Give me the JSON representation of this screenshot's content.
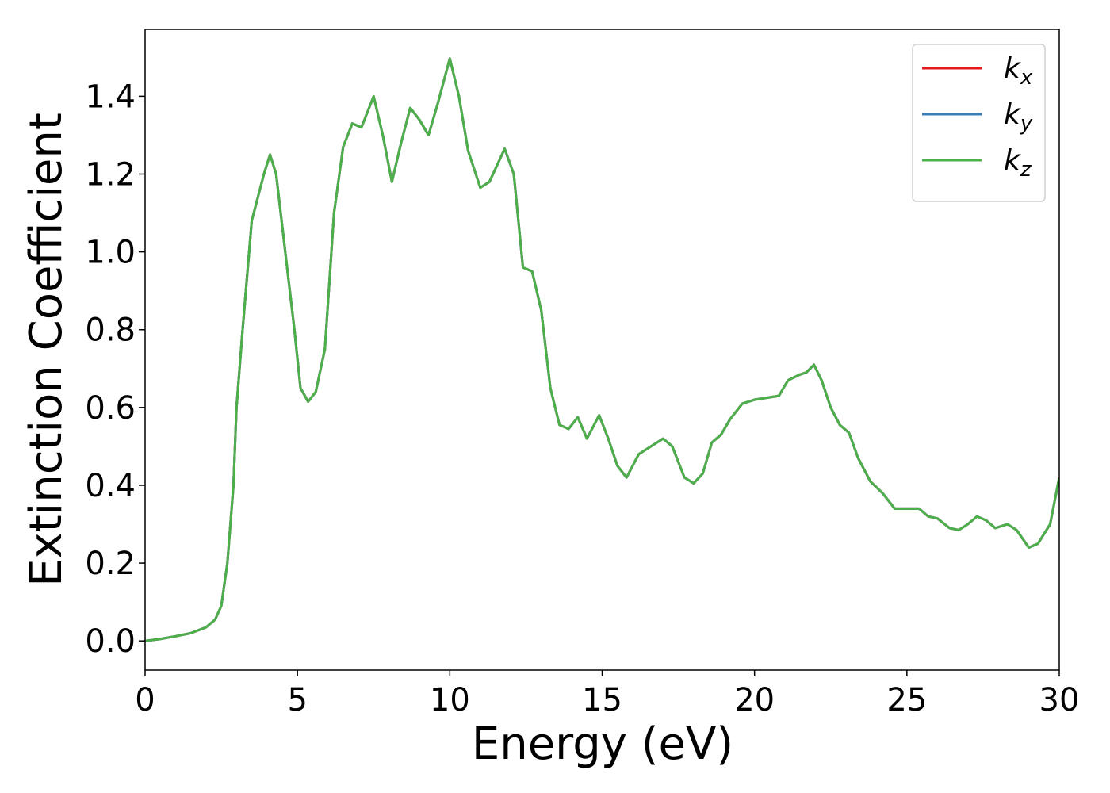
{
  "chart_data": {
    "type": "line",
    "xlabel": "Energy (eV)",
    "ylabel": "Extinction Coefficient",
    "x": [
      0,
      0.5,
      1,
      1.5,
      2,
      2.3,
      2.5,
      2.7,
      2.9,
      3.0,
      3.2,
      3.5,
      3.7,
      3.9,
      4.1,
      4.3,
      4.6,
      4.9,
      5.1,
      5.35,
      5.6,
      5.9,
      6.2,
      6.5,
      6.8,
      7.1,
      7.5,
      7.8,
      8.1,
      8.4,
      8.7,
      9.0,
      9.3,
      9.6,
      10.0,
      10.3,
      10.6,
      11.0,
      11.3,
      11.8,
      12.1,
      12.4,
      12.7,
      13.0,
      13.3,
      13.6,
      13.9,
      14.2,
      14.5,
      14.9,
      15.2,
      15.5,
      15.8,
      16.2,
      16.6,
      17.0,
      17.3,
      17.7,
      18.0,
      18.3,
      18.6,
      18.9,
      19.2,
      19.6,
      20.0,
      20.4,
      20.8,
      21.1,
      21.5,
      21.7,
      21.95,
      22.2,
      22.5,
      22.8,
      23.1,
      23.4,
      23.8,
      24.2,
      24.6,
      25.0,
      25.4,
      25.7,
      26.0,
      26.4,
      26.7,
      27.0,
      27.3,
      27.6,
      27.9,
      28.3,
      28.6,
      29.0,
      29.3,
      29.7,
      30.0
    ],
    "series": [
      {
        "name": "kx",
        "color": "#e41a1c",
        "values": [
          0.0,
          0.005,
          0.012,
          0.02,
          0.035,
          0.055,
          0.09,
          0.2,
          0.4,
          0.6,
          0.8,
          1.08,
          1.14,
          1.2,
          1.25,
          1.2,
          1.0,
          0.8,
          0.65,
          0.615,
          0.64,
          0.75,
          1.1,
          1.27,
          1.33,
          1.32,
          1.4,
          1.3,
          1.18,
          1.28,
          1.37,
          1.34,
          1.3,
          1.38,
          1.497,
          1.4,
          1.26,
          1.165,
          1.18,
          1.265,
          1.2,
          0.96,
          0.95,
          0.85,
          0.65,
          0.555,
          0.545,
          0.575,
          0.52,
          0.58,
          0.52,
          0.45,
          0.42,
          0.48,
          0.5,
          0.52,
          0.5,
          0.42,
          0.405,
          0.43,
          0.51,
          0.53,
          0.57,
          0.61,
          0.62,
          0.625,
          0.63,
          0.67,
          0.685,
          0.69,
          0.71,
          0.67,
          0.6,
          0.555,
          0.535,
          0.47,
          0.41,
          0.38,
          0.34,
          0.34,
          0.34,
          0.32,
          0.315,
          0.29,
          0.285,
          0.3,
          0.32,
          0.31,
          0.29,
          0.3,
          0.285,
          0.24,
          0.25,
          0.3,
          0.42
        ]
      },
      {
        "name": "ky",
        "color": "#377eb8",
        "values": [
          0.0,
          0.005,
          0.012,
          0.02,
          0.035,
          0.055,
          0.09,
          0.2,
          0.4,
          0.6,
          0.8,
          1.08,
          1.14,
          1.2,
          1.25,
          1.2,
          1.0,
          0.8,
          0.65,
          0.615,
          0.64,
          0.75,
          1.1,
          1.27,
          1.33,
          1.32,
          1.4,
          1.3,
          1.18,
          1.28,
          1.37,
          1.34,
          1.3,
          1.38,
          1.497,
          1.4,
          1.26,
          1.165,
          1.18,
          1.265,
          1.2,
          0.96,
          0.95,
          0.85,
          0.65,
          0.555,
          0.545,
          0.575,
          0.52,
          0.58,
          0.52,
          0.45,
          0.42,
          0.48,
          0.5,
          0.52,
          0.5,
          0.42,
          0.405,
          0.43,
          0.51,
          0.53,
          0.57,
          0.61,
          0.62,
          0.625,
          0.63,
          0.67,
          0.685,
          0.69,
          0.71,
          0.67,
          0.6,
          0.555,
          0.535,
          0.47,
          0.41,
          0.38,
          0.34,
          0.34,
          0.34,
          0.32,
          0.315,
          0.29,
          0.285,
          0.3,
          0.32,
          0.31,
          0.29,
          0.3,
          0.285,
          0.24,
          0.25,
          0.3,
          0.42
        ]
      },
      {
        "name": "kz",
        "color": "#4daf4a",
        "values": [
          0.0,
          0.005,
          0.012,
          0.02,
          0.035,
          0.055,
          0.09,
          0.2,
          0.4,
          0.6,
          0.8,
          1.08,
          1.14,
          1.2,
          1.25,
          1.2,
          1.0,
          0.8,
          0.65,
          0.615,
          0.64,
          0.75,
          1.1,
          1.27,
          1.33,
          1.32,
          1.4,
          1.3,
          1.18,
          1.28,
          1.37,
          1.34,
          1.3,
          1.38,
          1.497,
          1.4,
          1.26,
          1.165,
          1.18,
          1.265,
          1.2,
          0.96,
          0.95,
          0.85,
          0.65,
          0.555,
          0.545,
          0.575,
          0.52,
          0.58,
          0.52,
          0.45,
          0.42,
          0.48,
          0.5,
          0.52,
          0.5,
          0.42,
          0.405,
          0.43,
          0.51,
          0.53,
          0.57,
          0.61,
          0.62,
          0.625,
          0.63,
          0.67,
          0.685,
          0.69,
          0.71,
          0.67,
          0.6,
          0.555,
          0.535,
          0.47,
          0.41,
          0.38,
          0.34,
          0.34,
          0.34,
          0.32,
          0.315,
          0.29,
          0.285,
          0.3,
          0.32,
          0.31,
          0.29,
          0.3,
          0.285,
          0.24,
          0.25,
          0.3,
          0.42
        ]
      }
    ],
    "xlim": [
      0,
      30
    ],
    "xticks": [
      0,
      5,
      10,
      15,
      20,
      25,
      30
    ],
    "ylim": [
      -0.075,
      1.572
    ],
    "yticks": [
      {
        "value": 0,
        "label": "0.0"
      },
      {
        "value": 0.2,
        "label": "0.2"
      },
      {
        "value": 0.4,
        "label": "0.4"
      },
      {
        "value": 0.6,
        "label": "0.6"
      },
      {
        "value": 0.8,
        "label": "0.8"
      },
      {
        "value": 1.0,
        "label": "1.0"
      },
      {
        "value": 1.2,
        "label": "1.2"
      },
      {
        "value": 1.4,
        "label": "1.4"
      }
    ],
    "grid": false,
    "legend": "upper right"
  }
}
